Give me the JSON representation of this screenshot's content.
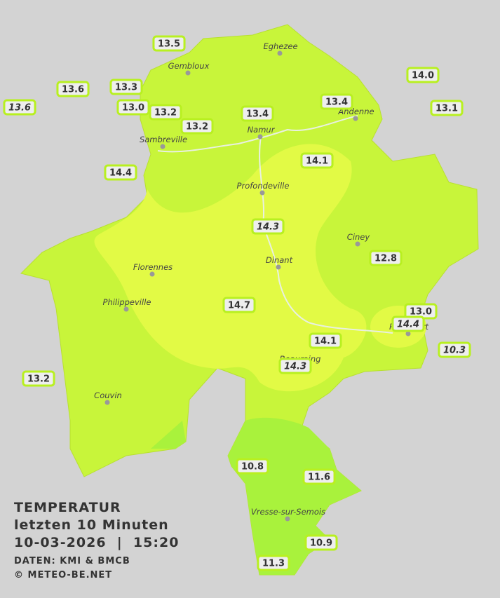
{
  "title": {
    "lines": [
      "TEMPERATUR",
      "letzten 10 Minuten",
      "10-03-2026  |  15:20"
    ],
    "source": "DATEN: KMI & BMCB",
    "copyright": "© METEO-BE.NET"
  },
  "cities": [
    "Eghezee",
    "Gembloux",
    "Andenne",
    "Namur",
    "Sambreville",
    "Profondeville",
    "Ciney",
    "Dinant",
    "Florennes",
    "Philippeville",
    "Couvin",
    "Vresse-sur-Semois",
    "Beauraing",
    "Rochefort"
  ],
  "stations": [
    "13.5",
    "13.6",
    "13.3",
    "13.0",
    "13.2",
    "13.2",
    "13.4",
    "13.4",
    "14.0",
    "13.1",
    "13.6",
    "14.4",
    "14.1",
    "14.3",
    "12.8",
    "14.7",
    "13.0",
    "14.4",
    "10.3",
    "14.1",
    "14.3",
    "13.2",
    "10.8",
    "11.6",
    "10.9",
    "11.3"
  ]
}
